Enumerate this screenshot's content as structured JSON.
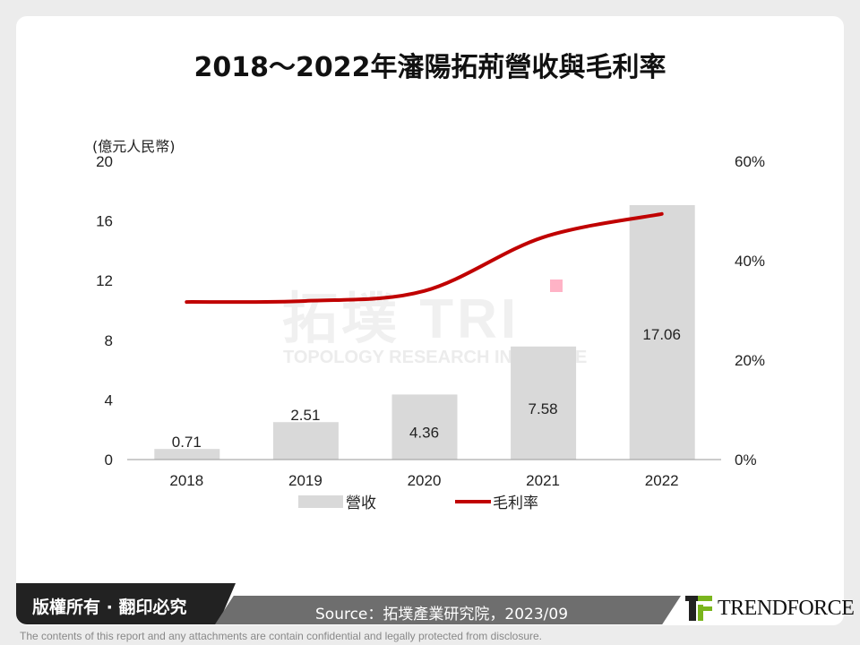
{
  "title": "2018～2022年瀋陽拓荊營收與毛利率",
  "watermark": {
    "text": "拓墣 TRI",
    "subtext": "TOPOLOGY RESEARCH INSTITUTE"
  },
  "footer": {
    "copyright": "版權所有 · 翻印必究",
    "source": "Source：拓墣產業研究院，2023/09",
    "brand": "TRENDFORCE",
    "disclaimer": "The contents of this report and any attachments are contain confidential and legally protected from disclosure."
  },
  "chart_data": {
    "type": "bar+line",
    "categories": [
      "2018",
      "2019",
      "2020",
      "2021",
      "2022"
    ],
    "series": [
      {
        "name": "營收",
        "type": "bar",
        "axis": "left",
        "values": [
          0.71,
          2.51,
          4.36,
          7.58,
          17.06
        ],
        "labels": [
          "0.71",
          "2.51",
          "4.36",
          "7.58",
          "17.06"
        ],
        "color": "#d9d9d9"
      },
      {
        "name": "毛利率",
        "type": "line",
        "axis": "right",
        "values": [
          31.7,
          31.9,
          33.9,
          44.7,
          49.4
        ],
        "color": "#c00000"
      }
    ],
    "ylabel": "(億元人民幣)",
    "ylim": [
      0,
      20
    ],
    "yticks": [
      "0",
      "4",
      "8",
      "12",
      "16",
      "20"
    ],
    "y2lim": [
      0,
      60
    ],
    "y2ticks": [
      "0%",
      "20%",
      "40%",
      "60%"
    ],
    "legend": "bottom",
    "grid": false
  }
}
